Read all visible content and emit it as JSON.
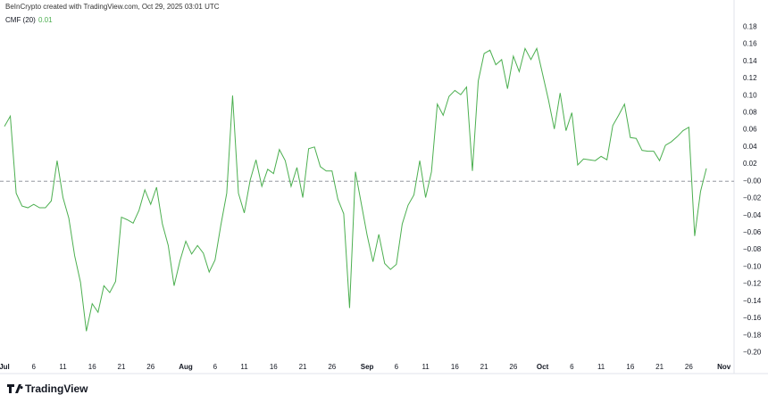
{
  "header": {
    "credit": "BeInCrypto created with TradingView.com, Oct 29, 2025 03:01 UTC",
    "brand": "TradingView"
  },
  "chart_data": {
    "type": "line",
    "title": "CMF (20)",
    "last_value_label": "0.01",
    "color": "#4caf50",
    "x": [
      "Jul 1",
      "Jul 2",
      "Jul 3",
      "Jul 4",
      "Jul 5",
      "Jul 6",
      "Jul 7",
      "Jul 8",
      "Jul 9",
      "Jul 10",
      "Jul 11",
      "Jul 12",
      "Jul 13",
      "Jul 14",
      "Jul 15",
      "Jul 16",
      "Jul 17",
      "Jul 18",
      "Jul 19",
      "Jul 20",
      "Jul 21",
      "Jul 22",
      "Jul 23",
      "Jul 24",
      "Jul 25",
      "Jul 26",
      "Jul 27",
      "Jul 28",
      "Jul 29",
      "Jul 30",
      "Jul 31",
      "Aug 1",
      "Aug 2",
      "Aug 3",
      "Aug 4",
      "Aug 5",
      "Aug 6",
      "Aug 7",
      "Aug 8",
      "Aug 9",
      "Aug 10",
      "Aug 11",
      "Aug 12",
      "Aug 13",
      "Aug 14",
      "Aug 15",
      "Aug 16",
      "Aug 17",
      "Aug 18",
      "Aug 19",
      "Aug 20",
      "Aug 21",
      "Aug 22",
      "Aug 23",
      "Aug 24",
      "Aug 25",
      "Aug 26",
      "Aug 27",
      "Aug 28",
      "Aug 29",
      "Aug 30",
      "Aug 31",
      "Sep 1",
      "Sep 2",
      "Sep 3",
      "Sep 4",
      "Sep 5",
      "Sep 6",
      "Sep 7",
      "Sep 8",
      "Sep 9",
      "Sep 10",
      "Sep 11",
      "Sep 12",
      "Sep 13",
      "Sep 14",
      "Sep 15",
      "Sep 16",
      "Sep 17",
      "Sep 18",
      "Sep 19",
      "Sep 20",
      "Sep 21",
      "Sep 22",
      "Sep 23",
      "Sep 24",
      "Sep 25",
      "Sep 26",
      "Sep 27",
      "Sep 28",
      "Sep 29",
      "Sep 30",
      "Oct 1",
      "Oct 2",
      "Oct 3",
      "Oct 4",
      "Oct 5",
      "Oct 6",
      "Oct 7",
      "Oct 8",
      "Oct 9",
      "Oct 10",
      "Oct 11",
      "Oct 12",
      "Oct 13",
      "Oct 14",
      "Oct 15",
      "Oct 16",
      "Oct 17",
      "Oct 18",
      "Oct 19",
      "Oct 20",
      "Oct 21",
      "Oct 22",
      "Oct 23",
      "Oct 24",
      "Oct 25",
      "Oct 26",
      "Oct 27",
      "Oct 28",
      "Oct 29"
    ],
    "values": [
      0.064,
      0.076,
      -0.014,
      -0.029,
      -0.031,
      -0.027,
      -0.031,
      -0.031,
      -0.023,
      0.024,
      -0.019,
      -0.043,
      -0.087,
      -0.118,
      -0.175,
      -0.143,
      -0.153,
      -0.122,
      -0.13,
      -0.117,
      -0.042,
      -0.045,
      -0.049,
      -0.034,
      -0.01,
      -0.027,
      -0.007,
      -0.05,
      -0.075,
      -0.122,
      -0.093,
      -0.07,
      -0.085,
      -0.075,
      -0.084,
      -0.106,
      -0.092,
      -0.051,
      -0.014,
      0.1,
      -0.014,
      -0.037,
      0.001,
      0.025,
      -0.006,
      0.014,
      0.009,
      0.037,
      0.024,
      -0.006,
      0.016,
      -0.019,
      0.038,
      0.04,
      0.017,
      0.012,
      0.012,
      -0.021,
      -0.038,
      -0.148,
      0.011,
      -0.026,
      -0.063,
      -0.094,
      -0.062,
      -0.096,
      -0.103,
      -0.097,
      -0.05,
      -0.028,
      -0.016,
      0.024,
      -0.019,
      0.011,
      0.09,
      0.077,
      0.099,
      0.106,
      0.101,
      0.11,
      0.012,
      0.117,
      0.149,
      0.153,
      0.136,
      0.142,
      0.108,
      0.146,
      0.128,
      0.155,
      0.142,
      0.155,
      0.125,
      0.095,
      0.061,
      0.103,
      0.059,
      0.08,
      0.019,
      0.026,
      0.025,
      0.024,
      0.029,
      0.025,
      0.065,
      0.077,
      0.09,
      0.051,
      0.05,
      0.036,
      0.035,
      0.035,
      0.024,
      0.042,
      0.046,
      0.052,
      0.059,
      0.063,
      -0.064,
      -0.012,
      0.015
    ],
    "xticks": [
      {
        "value": "Jul 1",
        "label": "Jul"
      },
      {
        "value": "Jul 6",
        "label": "6"
      },
      {
        "value": "Jul 11",
        "label": "11"
      },
      {
        "value": "Jul 16",
        "label": "16"
      },
      {
        "value": "Jul 21",
        "label": "21"
      },
      {
        "value": "Jul 26",
        "label": "26"
      },
      {
        "value": "Aug 1",
        "label": "Aug"
      },
      {
        "value": "Aug 6",
        "label": "6"
      },
      {
        "value": "Aug 11",
        "label": "11"
      },
      {
        "value": "Aug 16",
        "label": "16"
      },
      {
        "value": "Aug 21",
        "label": "21"
      },
      {
        "value": "Aug 26",
        "label": "26"
      },
      {
        "value": "Sep 1",
        "label": "Sep"
      },
      {
        "value": "Sep 6",
        "label": "6"
      },
      {
        "value": "Sep 11",
        "label": "11"
      },
      {
        "value": "Sep 16",
        "label": "16"
      },
      {
        "value": "Sep 21",
        "label": "21"
      },
      {
        "value": "Sep 26",
        "label": "26"
      },
      {
        "value": "Oct 1",
        "label": "Oct"
      },
      {
        "value": "Oct 6",
        "label": "6"
      },
      {
        "value": "Oct 11",
        "label": "11"
      },
      {
        "value": "Oct 16",
        "label": "16"
      },
      {
        "value": "Oct 21",
        "label": "21"
      },
      {
        "value": "Oct 26",
        "label": "26"
      },
      {
        "value": "Nov 1",
        "label": "Nov"
      }
    ],
    "ylim": [
      -0.21,
      0.197
    ],
    "yticks": [
      {
        "value": 0.18,
        "label": "0.18"
      },
      {
        "value": 0.16,
        "label": "0.16"
      },
      {
        "value": 0.14,
        "label": "0.14"
      },
      {
        "value": 0.12,
        "label": "0.12"
      },
      {
        "value": 0.1,
        "label": "0.10"
      },
      {
        "value": 0.08,
        "label": "0.08"
      },
      {
        "value": 0.06,
        "label": "0.06"
      },
      {
        "value": 0.04,
        "label": "0.04"
      },
      {
        "value": 0.02,
        "label": "0.02"
      },
      {
        "value": 0,
        "label": "−0.00"
      },
      {
        "value": -0.02,
        "label": "−0.02"
      },
      {
        "value": -0.04,
        "label": "−0.04"
      },
      {
        "value": -0.06,
        "label": "−0.06"
      },
      {
        "value": -0.08,
        "label": "−0.08"
      },
      {
        "value": -0.1,
        "label": "−0.10"
      },
      {
        "value": -0.12,
        "label": "−0.12"
      },
      {
        "value": -0.14,
        "label": "−0.14"
      },
      {
        "value": -0.16,
        "label": "−0.16"
      },
      {
        "value": -0.18,
        "label": "−0.18"
      },
      {
        "value": -0.2,
        "label": "−0.20"
      }
    ],
    "grid": false
  }
}
